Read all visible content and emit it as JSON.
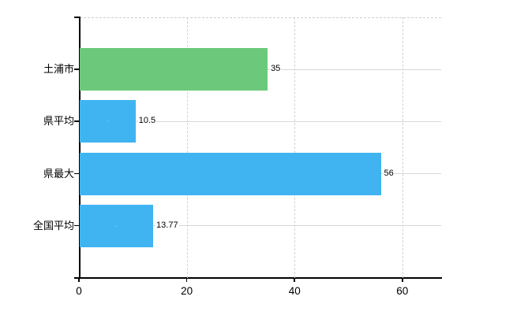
{
  "chart_data": {
    "type": "bar",
    "orientation": "horizontal",
    "title": "",
    "xlabel": "",
    "ylabel": "",
    "legend": "none",
    "grid": true,
    "categories": [
      "土浦市",
      "県平均",
      "県最大",
      "全国平均"
    ],
    "values": [
      35,
      10.5,
      56,
      13.77
    ],
    "value_labels": [
      "35",
      "10.5",
      "56",
      "13.77"
    ],
    "bar_colors": [
      "#6cc97c",
      "#3fb4f0",
      "#3fb4f0",
      "#3fb4f0"
    ],
    "x_ticks": [
      0,
      20,
      40,
      60
    ],
    "x_tick_labels": [
      "0",
      "20",
      "40",
      "60"
    ],
    "xlim": [
      0,
      67.2
    ],
    "colors": {
      "bar_green": "#6cc97c",
      "bar_blue": "#3fb4f0",
      "axis": "#000000",
      "grid_horizontal": "#d2dad2",
      "grid_vertical": "#d5cfd7",
      "text": "#000000",
      "background": "#ffffff"
    }
  }
}
